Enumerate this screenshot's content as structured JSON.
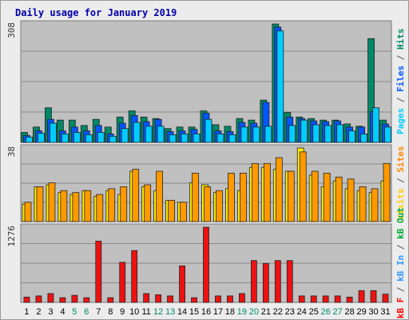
{
  "chart_data": {
    "title": "Daily usage for January 2019",
    "type": "bar",
    "days": [
      "1",
      "2",
      "3",
      "4",
      "5",
      "6",
      "7",
      "8",
      "9",
      "10",
      "11",
      "12",
      "13",
      "14",
      "15",
      "16",
      "17",
      "18",
      "19",
      "20",
      "21",
      "22",
      "23",
      "24",
      "25",
      "26",
      "27",
      "28",
      "29",
      "30",
      "31"
    ],
    "weekend_days": [
      "5",
      "6",
      "12",
      "13",
      "19",
      "20",
      "26",
      "27"
    ],
    "panels": [
      {
        "id": "hits",
        "ymax_label": "308",
        "ymax": 308,
        "legend": [
          {
            "label": "Pages",
            "color": "#00ccff"
          },
          {
            "label": " / ",
            "color": "#555555"
          },
          {
            "label": "Files",
            "color": "#0055ff"
          },
          {
            "label": " / ",
            "color": "#555555"
          },
          {
            "label": "Hits",
            "color": "#008866"
          }
        ],
        "series": [
          {
            "name": "Hits",
            "color": "#008866",
            "values": [
              26,
              40,
              90,
              58,
              58,
              44,
              60,
              40,
              66,
              82,
              66,
              62,
              36,
              40,
              40,
              82,
              46,
              42,
              62,
              58,
              110,
              308,
              78,
              66,
              62,
              58,
              58,
              48,
              42,
              270,
              58
            ]
          },
          {
            "name": "Files",
            "color": "#0055ff",
            "values": [
              18,
              30,
              60,
              30,
              40,
              30,
              44,
              22,
              50,
              70,
              54,
              60,
              28,
              30,
              34,
              76,
              30,
              28,
              52,
              50,
              104,
              300,
              66,
              62,
              56,
              54,
              56,
              40,
              40,
              80,
              48
            ]
          },
          {
            "name": "Pages",
            "color": "#00ccff",
            "values": [
              14,
              24,
              50,
              22,
              26,
              20,
              26,
              16,
              36,
              52,
              42,
              42,
              20,
              22,
              22,
              60,
              22,
              20,
              40,
              40,
              42,
              290,
              44,
              58,
              46,
              44,
              46,
              30,
              22,
              90,
              40
            ]
          }
        ]
      },
      {
        "id": "visits",
        "ymax_label": "38",
        "ymax": 38,
        "legend": [
          {
            "label": "Visits",
            "color": "#ffcc00"
          },
          {
            "label": " / ",
            "color": "#555555"
          },
          {
            "label": "Sites",
            "color": "#ff8800"
          }
        ],
        "series": [
          {
            "name": "Visits",
            "color": "#ffee00",
            "values": [
              9,
              18,
              19,
              15,
              14,
              16,
              13,
              16,
              14,
              26,
              18,
              16,
              11,
              10,
              20,
              19,
              15,
              17,
              16,
              28,
              28,
              27,
              26,
              38,
              24,
              18,
              21,
              17,
              16,
              15,
              21
            ]
          },
          {
            "name": "Sites",
            "color": "#ff9900",
            "values": [
              10,
              18,
              20,
              16,
              15,
              16,
              14,
              17,
              18,
              27,
              19,
              26,
              11,
              10,
              25,
              18,
              16,
              25,
              25,
              30,
              30,
              33,
              26,
              36,
              26,
              25,
              23,
              22,
              18,
              17,
              30
            ]
          }
        ]
      },
      {
        "id": "kbytes",
        "ymax_label": "1276",
        "ymax": 1276,
        "legend": [
          {
            "label": "kB F",
            "color": "#ff0000"
          },
          {
            "label": " / ",
            "color": "#555555"
          },
          {
            "label": "kB In",
            "color": "#3399ff"
          },
          {
            "label": " / ",
            "color": "#555555"
          },
          {
            "label": "kB Out",
            "color": "#00aa33"
          }
        ],
        "series": [
          {
            "name": "kB F",
            "color": "#ee1111",
            "values": [
              90,
              110,
              150,
              80,
              120,
              80,
              1040,
              80,
              680,
              880,
              150,
              130,
              110,
              620,
              80,
              1276,
              110,
              110,
              150,
              710,
              660,
              710,
              710,
              110,
              110,
              110,
              110,
              90,
              200,
              200,
              140
            ]
          }
        ]
      }
    ]
  }
}
